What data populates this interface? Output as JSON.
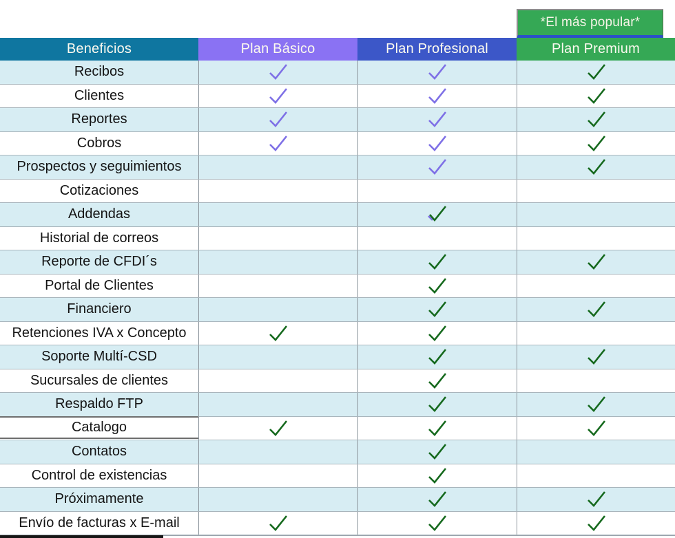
{
  "badge": {
    "label": "*El más popular*"
  },
  "header": {
    "benefits": "Beneficios",
    "plan_basico": "Plan Básico",
    "plan_profesional": "Plan Profesional",
    "plan_premium": "Plan Premium"
  },
  "colors": {
    "benefits_header_bg": "#0f76a0",
    "basico_header_bg": "#8a72f3",
    "profesional_header_bg": "#3c57c8",
    "premium_header_bg": "#35a855",
    "badge_bg": "#35a855",
    "badge_border": "#8e8e8e",
    "badge_underline": "#2b50c8",
    "row_alt_bg": "#d7edf3",
    "check_purple": "#7e70e6",
    "check_green": "#15691d"
  },
  "rows": [
    {
      "label": "Recibos",
      "basico": "purple",
      "profesional": "purple",
      "premium": "green"
    },
    {
      "label": "Clientes",
      "basico": "purple",
      "profesional": "purple",
      "premium": "green"
    },
    {
      "label": "Reportes",
      "basico": "purple",
      "profesional": "purple",
      "premium": "green"
    },
    {
      "label": "Cobros",
      "basico": "purple",
      "profesional": "purple",
      "premium": "green"
    },
    {
      "label": "Prospectos y seguimientos",
      "basico": null,
      "profesional": "purple",
      "premium": "green"
    },
    {
      "label": "Cotizaciones",
      "basico": null,
      "profesional": null,
      "premium": null
    },
    {
      "label": "Addendas",
      "basico": null,
      "profesional": "green_purple",
      "premium": null
    },
    {
      "label": "Historial de correos",
      "basico": null,
      "profesional": null,
      "premium": null
    },
    {
      "label": "Reporte de CFDI´s",
      "basico": null,
      "profesional": "green",
      "premium": "green"
    },
    {
      "label": "Portal de Clientes",
      "basico": null,
      "profesional": "green",
      "premium": null
    },
    {
      "label": "Financiero",
      "basico": null,
      "profesional": "green",
      "premium": "green"
    },
    {
      "label": "Retenciones IVA x Concepto",
      "basico": "green",
      "profesional": "green",
      "premium": null
    },
    {
      "label": "Soporte Multí-CSD",
      "basico": null,
      "profesional": "green",
      "premium": "green"
    },
    {
      "label": "Sucursales de clientes",
      "basico": null,
      "profesional": "green",
      "premium": null
    },
    {
      "label": "Respaldo FTP",
      "basico": null,
      "profesional": "green",
      "premium": "green"
    },
    {
      "label": "Catalogo",
      "basico": "green",
      "profesional": "green",
      "premium": "green",
      "highlight": true
    },
    {
      "label": "Contatos",
      "basico": null,
      "profesional": "green",
      "premium": null
    },
    {
      "label": "Control de existencias",
      "basico": null,
      "profesional": "green",
      "premium": null
    },
    {
      "label": "Próximamente",
      "basico": null,
      "profesional": "green",
      "premium": "green"
    },
    {
      "label": "Envío de facturas x E-mail",
      "basico": "green",
      "profesional": "green",
      "premium": "green"
    }
  ],
  "chart_data": {
    "type": "table",
    "title": "Comparación de beneficios por plan",
    "columns": [
      "Beneficios",
      "Plan Básico",
      "Plan Profesional",
      "Plan Premium"
    ],
    "rows": [
      [
        "Recibos",
        true,
        true,
        true
      ],
      [
        "Clientes",
        true,
        true,
        true
      ],
      [
        "Reportes",
        true,
        true,
        true
      ],
      [
        "Cobros",
        true,
        true,
        true
      ],
      [
        "Prospectos y seguimientos",
        false,
        true,
        true
      ],
      [
        "Cotizaciones",
        false,
        false,
        false
      ],
      [
        "Addendas",
        false,
        true,
        false
      ],
      [
        "Historial de correos",
        false,
        false,
        false
      ],
      [
        "Reporte de CFDI´s",
        false,
        true,
        true
      ],
      [
        "Portal de Clientes",
        false,
        true,
        false
      ],
      [
        "Financiero",
        false,
        true,
        true
      ],
      [
        "Retenciones IVA x Concepto",
        true,
        true,
        false
      ],
      [
        "Soporte Multí-CSD",
        false,
        true,
        true
      ],
      [
        "Sucursales de clientes",
        false,
        true,
        false
      ],
      [
        "Respaldo FTP",
        false,
        true,
        true
      ],
      [
        "Catalogo",
        true,
        true,
        true
      ],
      [
        "Contatos",
        false,
        true,
        false
      ],
      [
        "Control de existencias",
        false,
        true,
        false
      ],
      [
        "Próximamente",
        false,
        true,
        true
      ],
      [
        "Envío de facturas x E-mail",
        true,
        true,
        true
      ]
    ],
    "annotations": [
      "*El más popular* — sobre la columna Plan Premium"
    ]
  }
}
